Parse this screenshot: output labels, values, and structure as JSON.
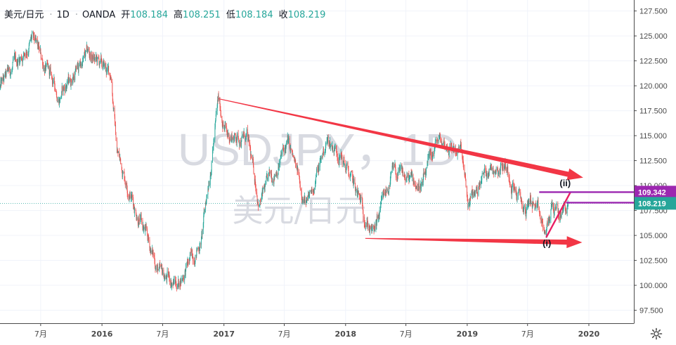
{
  "header": {
    "symbol": "美元/日元",
    "interval": "1D",
    "source": "OANDA",
    "open_label": "开",
    "open_value": "108.184",
    "high_label": "高",
    "high_value": "108.251",
    "low_label": "低",
    "low_value": "108.184",
    "close_label": "收",
    "close_value": "108.219"
  },
  "watermark": {
    "line1": "USDJPY，1D",
    "line2": "美元/日元"
  },
  "chart_data": {
    "type": "candlestick",
    "x_ticks": [
      "7月",
      "2016",
      "7月",
      "2017",
      "7月",
      "2018",
      "7月",
      "2019",
      "7月",
      "2020"
    ],
    "y_ticks": [
      "127.500",
      "125.000",
      "122.500",
      "120.000",
      "117.500",
      "115.000",
      "112.500",
      "110.000",
      "107.500",
      "105.000",
      "102.500",
      "100.000",
      "97.500"
    ],
    "ylim": [
      96.2,
      128.6
    ],
    "xlim": [
      "2015-03-01",
      "2020-05-15"
    ],
    "price_anchors": [
      {
        "date": "2015-03-01",
        "close": 119.8
      },
      {
        "date": "2015-06-05",
        "close": 124.6
      },
      {
        "date": "2015-08-25",
        "close": 119.0
      },
      {
        "date": "2015-11-20",
        "close": 123.2
      },
      {
        "date": "2016-01-29",
        "close": 121.0
      },
      {
        "date": "2016-02-15",
        "close": 113.5
      },
      {
        "date": "2016-04-07",
        "close": 108.1
      },
      {
        "date": "2016-06-24",
        "close": 101.0
      },
      {
        "date": "2016-08-16",
        "close": 100.2
      },
      {
        "date": "2016-10-25",
        "close": 104.5
      },
      {
        "date": "2016-12-15",
        "close": 118.4
      },
      {
        "date": "2017-01-10",
        "close": 115.0
      },
      {
        "date": "2017-03-10",
        "close": 114.8
      },
      {
        "date": "2017-04-17",
        "close": 108.3
      },
      {
        "date": "2017-07-11",
        "close": 114.2
      },
      {
        "date": "2017-09-08",
        "close": 107.9
      },
      {
        "date": "2017-11-06",
        "close": 114.5
      },
      {
        "date": "2017-12-12",
        "close": 113.5
      },
      {
        "date": "2018-03-26",
        "close": 105.0
      },
      {
        "date": "2018-05-21",
        "close": 111.2
      },
      {
        "date": "2018-08-20",
        "close": 110.0
      },
      {
        "date": "2018-10-04",
        "close": 114.5
      },
      {
        "date": "2018-12-14",
        "close": 113.4
      },
      {
        "date": "2019-01-03",
        "close": 107.9
      },
      {
        "date": "2019-03-05",
        "close": 111.9
      },
      {
        "date": "2019-04-24",
        "close": 112.2
      },
      {
        "date": "2019-06-25",
        "close": 107.2
      },
      {
        "date": "2019-07-10",
        "close": 108.8
      },
      {
        "date": "2019-08-26",
        "close": 104.9
      },
      {
        "date": "2019-09-12",
        "close": 108.1
      },
      {
        "date": "2019-10-03",
        "close": 106.9
      },
      {
        "date": "2019-10-31",
        "close": 108.22
      }
    ],
    "price_markers": [
      {
        "label": "109.342",
        "value": 109.342,
        "color": "#9c27b0"
      },
      {
        "label": "108.287",
        "value": 108.287,
        "color": "#9c27b0"
      },
      {
        "label": "108.219",
        "value": 108.219,
        "color": "#26a69a"
      }
    ],
    "last_price": 108.219,
    "trend_lines": [
      {
        "from": [
          "2016-12-16",
          118.7
        ],
        "to": [
          "2019-12-15",
          110.8
        ],
        "color": "#f23645",
        "arrow": true
      },
      {
        "from": [
          "2018-03-01",
          104.7
        ],
        "to": [
          "2019-12-12",
          104.3
        ],
        "color": "#f23645",
        "arrow": true
      }
    ],
    "wave_lines": [
      {
        "from": [
          "2019-08-26",
          104.8
        ],
        "to": [
          "2019-11-07",
          109.35
        ],
        "color": "#e91e63"
      }
    ],
    "horizontal_lines": [
      {
        "from": "2019-08-05",
        "value": 109.342,
        "color": "#9c27b0"
      },
      {
        "from": "2019-10-25",
        "value": 108.287,
        "color": "#9c27b0"
      }
    ],
    "annotations": [
      {
        "text": "(ii)",
        "date": "2019-10-22",
        "value": 109.95
      },
      {
        "text": "(i)",
        "date": "2019-08-28",
        "value": 103.9
      }
    ],
    "colors": {
      "up": "#26a69a",
      "down": "#ef5350",
      "grid": "#f0f3fa",
      "axis_text": "#4a4a4a"
    },
    "grid": true
  }
}
